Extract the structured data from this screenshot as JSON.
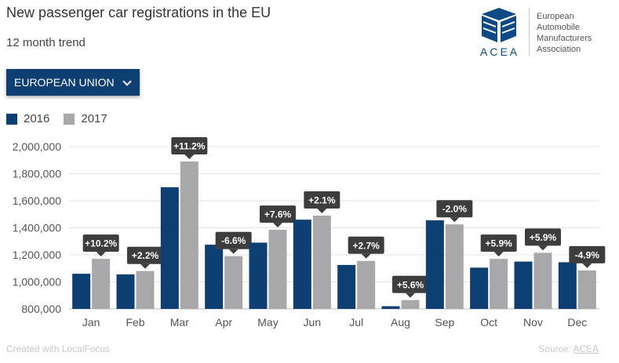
{
  "header": {
    "title": "New passenger car registrations in the EU",
    "subtitle": "12 month trend"
  },
  "logo": {
    "acronym": "ACEA",
    "lines": [
      "European",
      "Automobile",
      "Manufacturers",
      "Association"
    ],
    "brand_color": "#0d4a86"
  },
  "selector": {
    "label": "EUROPEAN UNION",
    "icon": "chevron-down-icon",
    "color": "#0d3f73"
  },
  "footer": {
    "credit": "Created with LocalFocus",
    "source_prefix": "Source:",
    "source_link": "ACEA"
  },
  "chart_data": {
    "type": "bar",
    "categories": [
      "Jan",
      "Feb",
      "Mar",
      "Apr",
      "May",
      "Jun",
      "Jul",
      "Aug",
      "Sep",
      "Oct",
      "Nov",
      "Dec"
    ],
    "series": [
      {
        "name": "2016",
        "color": "#0d3f73",
        "values": [
          1060000,
          1055000,
          1700000,
          1275000,
          1290000,
          1460000,
          1125000,
          820000,
          1455000,
          1105000,
          1150000,
          1145000
        ]
      },
      {
        "name": "2017",
        "color": "#a8a8aa",
        "values": [
          1170000,
          1080000,
          1890000,
          1190000,
          1385000,
          1490000,
          1155000,
          865000,
          1425000,
          1170000,
          1215000,
          1085000
        ]
      }
    ],
    "annotations": [
      "+10.2%",
      "+2.2%",
      "+11.2%",
      "-6.6%",
      "+7.6%",
      "+2.1%",
      "+2.7%",
      "+5.6%",
      "-2.0%",
      "+5.9%",
      "+5.9%",
      "-4.9%"
    ],
    "yticks": [
      "2,000,000",
      "1,800,000",
      "1,600,000",
      "1,400,000",
      "1,200,000",
      "1,000,000",
      "800,000"
    ],
    "ylim": [
      800000,
      2000000
    ],
    "grid": true,
    "legend_position": "top-left"
  }
}
